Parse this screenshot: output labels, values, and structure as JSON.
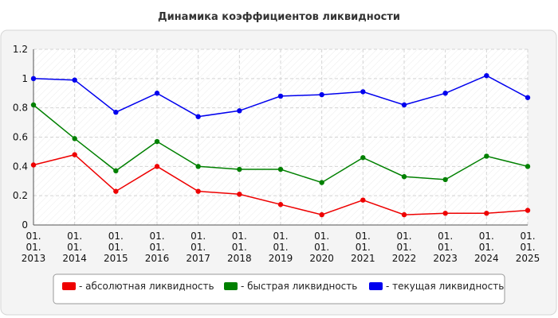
{
  "chart_data": {
    "type": "line",
    "title": "Динамика коэффициентов ликвидности",
    "xlabel": "",
    "ylabel": "",
    "categories": [
      [
        "01.",
        "01.",
        "2013"
      ],
      [
        "01.",
        "01.",
        "2014"
      ],
      [
        "01.",
        "01.",
        "2015"
      ],
      [
        "01.",
        "01.",
        "2016"
      ],
      [
        "01.",
        "01.",
        "2017"
      ],
      [
        "01.",
        "01.",
        "2018"
      ],
      [
        "01.",
        "01.",
        "2019"
      ],
      [
        "01.",
        "01.",
        "2020"
      ],
      [
        "01.",
        "01.",
        "2021"
      ],
      [
        "01.",
        "01.",
        "2022"
      ],
      [
        "01.",
        "01.",
        "2023"
      ],
      [
        "01.",
        "01.",
        "2024"
      ],
      [
        "01.",
        "01.",
        "2025"
      ]
    ],
    "ylim": [
      0,
      1.2
    ],
    "yticks": [
      "0",
      "0.2",
      "0.4",
      "0.6",
      "0.8",
      "1",
      "1.2"
    ],
    "grid": true,
    "legend_position": "bottom",
    "series": [
      {
        "name": "- абсолютная ликвидность",
        "color": "#ee0000",
        "values": [
          0.41,
          0.48,
          0.23,
          0.4,
          0.23,
          0.21,
          0.14,
          0.07,
          0.17,
          0.07,
          0.08,
          0.08,
          0.1
        ]
      },
      {
        "name": "- быстрая ликвидность",
        "color": "#008000",
        "values": [
          0.82,
          0.59,
          0.37,
          0.57,
          0.4,
          0.38,
          0.38,
          0.29,
          0.46,
          0.33,
          0.31,
          0.47,
          0.4
        ]
      },
      {
        "name": "- текущая ликвидность",
        "color": "#0000ee",
        "values": [
          1.0,
          0.99,
          0.77,
          0.9,
          0.74,
          0.78,
          0.88,
          0.89,
          0.91,
          0.82,
          0.9,
          1.02,
          0.87
        ]
      }
    ]
  }
}
